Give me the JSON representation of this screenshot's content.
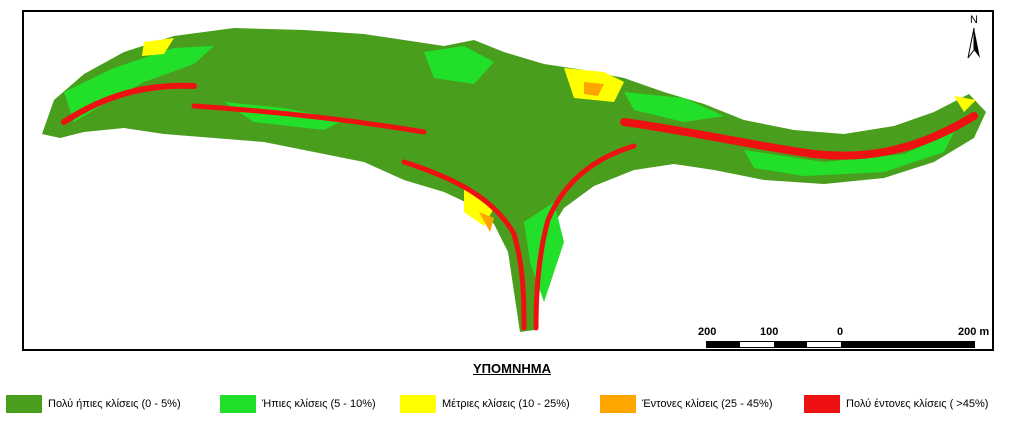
{
  "map": {
    "north_label": "N",
    "scale_labels": [
      "200",
      "100",
      "0",
      "200 m"
    ],
    "colors": {
      "very_gentle": "#4a9e1e",
      "gentle": "#22e02a",
      "moderate": "#ffff00",
      "steep": "#ffa500",
      "very_steep": "#ee1111"
    }
  },
  "legend": {
    "title": "ΥΠΟΜΝΗΜΑ",
    "items": [
      {
        "label": "Πολύ ήπιες κλίσεις (0 - 5%)",
        "color": "#4a9e1e"
      },
      {
        "label": "Ήπιες κλίσεις (5 - 10%)",
        "color": "#22e02a"
      },
      {
        "label": "Μέτριες κλίσεις (10 - 25%)",
        "color": "#ffff00"
      },
      {
        "label": "Έντονες κλίσεις (25 - 45%)",
        "color": "#ffa500"
      },
      {
        "label": "Πολύ έντονες κλίσεις ( >45%)",
        "color": "#ee1111"
      }
    ]
  }
}
